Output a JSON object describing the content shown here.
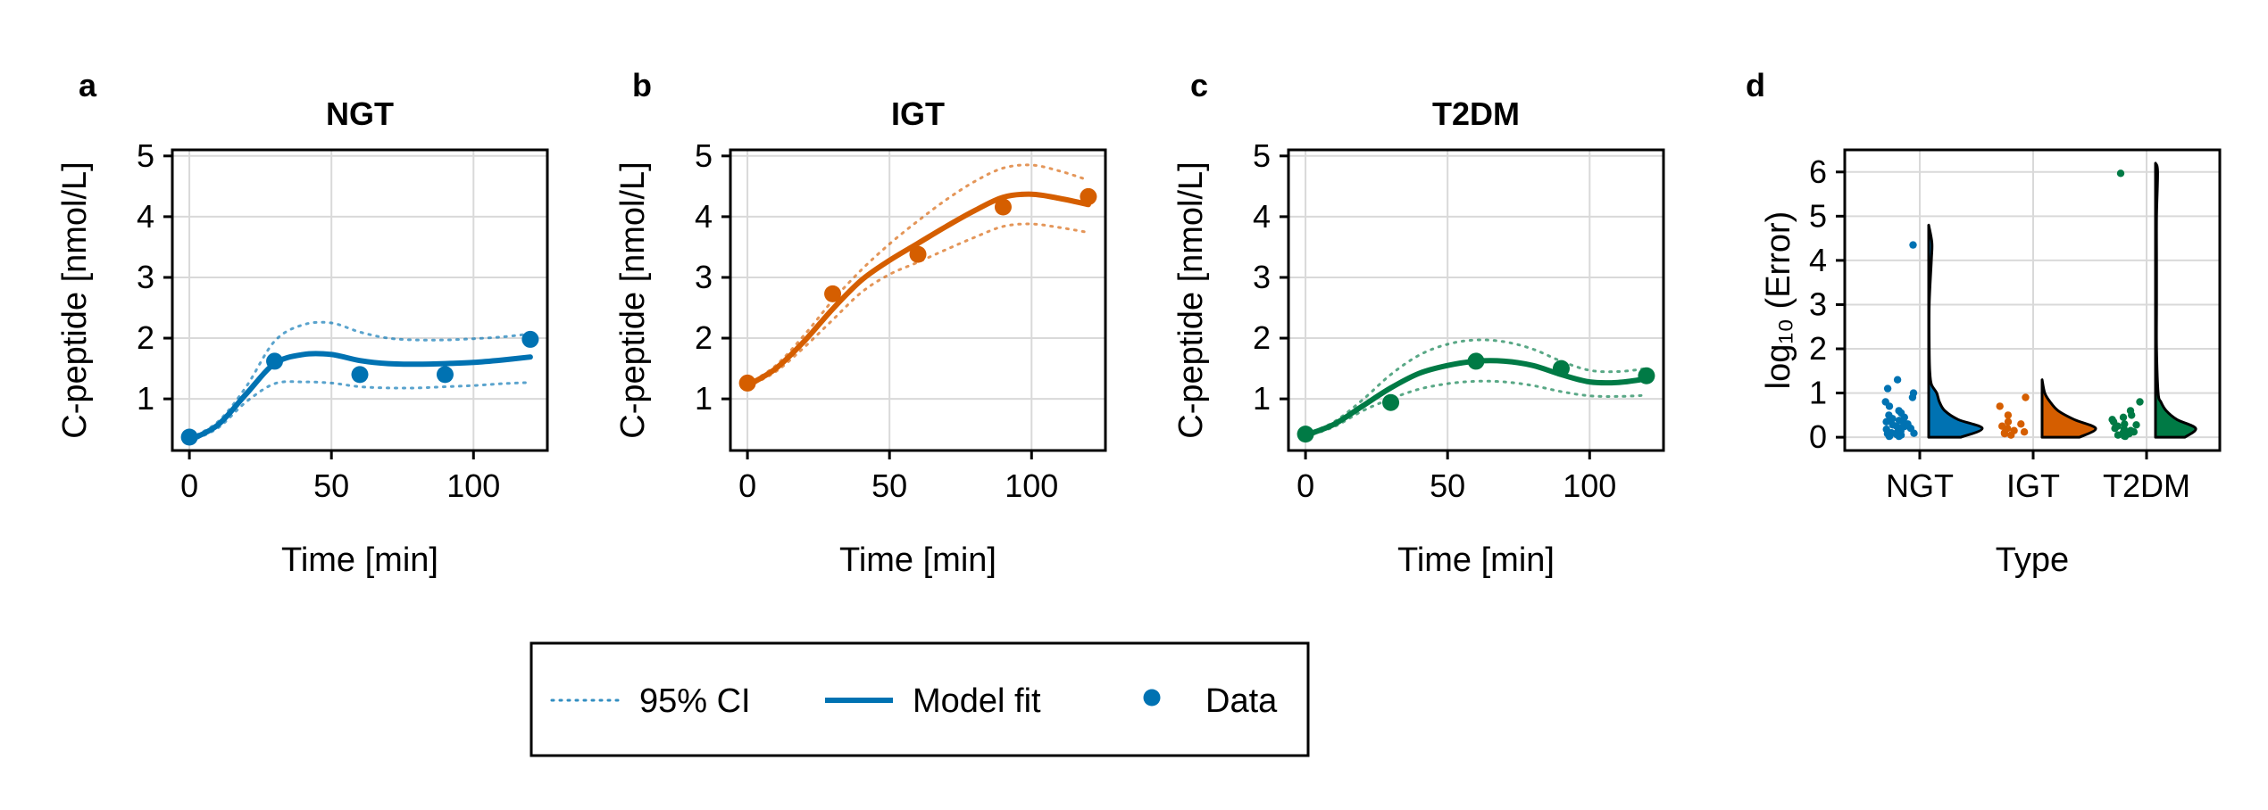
{
  "chart_data": [
    {
      "type": "line",
      "panel": "a",
      "title": "NGT",
      "xlabel": "Time [min]",
      "ylabel": "C-peptide [nmol/L]",
      "xlim": [
        -6,
        126
      ],
      "ylim": [
        0.15,
        5.1
      ],
      "xticks": [
        0,
        50,
        100
      ],
      "yticks": [
        1,
        2,
        3,
        4,
        5
      ],
      "color": "#0072b2",
      "data_points": {
        "x": [
          0,
          30,
          60,
          90,
          120
        ],
        "y": [
          0.37,
          1.62,
          1.4,
          1.4,
          1.98
        ]
      },
      "model_fit": {
        "x": [
          0,
          10,
          20,
          30,
          40,
          50,
          60,
          70,
          80,
          90,
          100,
          110,
          120
        ],
        "y": [
          0.32,
          0.57,
          1.08,
          1.58,
          1.73,
          1.73,
          1.63,
          1.58,
          1.57,
          1.58,
          1.6,
          1.64,
          1.69
        ]
      },
      "ci_upper": {
        "x": [
          0,
          10,
          20,
          30,
          40,
          50,
          60,
          70,
          80,
          90,
          100,
          110,
          120
        ],
        "y": [
          0.35,
          0.62,
          1.2,
          1.95,
          2.22,
          2.25,
          2.1,
          2.0,
          1.97,
          1.97,
          1.99,
          2.02,
          2.07
        ]
      },
      "ci_lower": {
        "x": [
          0,
          10,
          20,
          30,
          40,
          50,
          60,
          70,
          80,
          90,
          100,
          110,
          120
        ],
        "y": [
          0.3,
          0.52,
          0.95,
          1.25,
          1.28,
          1.26,
          1.2,
          1.18,
          1.18,
          1.2,
          1.22,
          1.25,
          1.27
        ]
      }
    },
    {
      "type": "line",
      "panel": "b",
      "title": "IGT",
      "xlabel": "Time [min]",
      "ylabel": "C-peptide [nmol/L]",
      "xlim": [
        -6,
        126
      ],
      "ylim": [
        0.15,
        5.1
      ],
      "xticks": [
        0,
        50,
        100
      ],
      "yticks": [
        1,
        2,
        3,
        4,
        5
      ],
      "color": "#d55e00",
      "data_points": {
        "x": [
          0,
          30,
          60,
          90,
          120
        ],
        "y": [
          1.26,
          2.73,
          3.38,
          4.16,
          4.33
        ]
      },
      "model_fit": {
        "x": [
          0,
          10,
          20,
          30,
          40,
          50,
          60,
          70,
          80,
          90,
          100,
          110,
          120
        ],
        "y": [
          1.22,
          1.5,
          1.95,
          2.48,
          2.95,
          3.28,
          3.56,
          3.84,
          4.1,
          4.32,
          4.37,
          4.3,
          4.2
        ]
      },
      "ci_upper": {
        "x": [
          0,
          10,
          20,
          30,
          40,
          50,
          60,
          70,
          80,
          90,
          100,
          110,
          120
        ],
        "y": [
          1.24,
          1.55,
          2.05,
          2.62,
          3.12,
          3.55,
          3.93,
          4.28,
          4.58,
          4.8,
          4.85,
          4.75,
          4.6
        ]
      },
      "ci_lower": {
        "x": [
          0,
          10,
          20,
          30,
          40,
          50,
          60,
          70,
          80,
          90,
          100,
          110,
          120
        ],
        "y": [
          1.2,
          1.45,
          1.85,
          2.3,
          2.75,
          3.05,
          3.25,
          3.46,
          3.66,
          3.84,
          3.88,
          3.82,
          3.74
        ]
      }
    },
    {
      "type": "line",
      "panel": "c",
      "title": "T2DM",
      "xlabel": "Time [min]",
      "ylabel": "C-peptide [nmol/L]",
      "xlim": [
        -6,
        126
      ],
      "ylim": [
        0.15,
        5.1
      ],
      "xticks": [
        0,
        50,
        100
      ],
      "yticks": [
        1,
        2,
        3,
        4,
        5
      ],
      "color": "#007a45",
      "data_points": {
        "x": [
          0,
          30,
          60,
          90,
          120
        ],
        "y": [
          0.42,
          0.94,
          1.62,
          1.5,
          1.38
        ]
      },
      "model_fit": {
        "x": [
          0,
          10,
          20,
          30,
          40,
          50,
          60,
          70,
          80,
          90,
          100,
          110,
          120
        ],
        "y": [
          0.4,
          0.58,
          0.88,
          1.18,
          1.42,
          1.55,
          1.62,
          1.62,
          1.55,
          1.4,
          1.28,
          1.27,
          1.33
        ]
      },
      "ci_upper": {
        "x": [
          0,
          10,
          20,
          30,
          40,
          50,
          60,
          70,
          80,
          90,
          100,
          110,
          120
        ],
        "y": [
          0.42,
          0.62,
          0.98,
          1.4,
          1.72,
          1.9,
          1.97,
          1.94,
          1.82,
          1.62,
          1.47,
          1.45,
          1.5
        ]
      },
      "ci_lower": {
        "x": [
          0,
          10,
          20,
          30,
          40,
          50,
          60,
          70,
          80,
          90,
          100,
          110,
          120
        ],
        "y": [
          0.38,
          0.54,
          0.8,
          1.0,
          1.16,
          1.25,
          1.29,
          1.28,
          1.22,
          1.12,
          1.05,
          1.04,
          1.06
        ]
      }
    },
    {
      "type": "violin",
      "panel": "d",
      "title": "",
      "xlabel": "Type",
      "ylabel": "log₁₀ (Error)",
      "ylim": [
        -0.3,
        6.5
      ],
      "yticks": [
        0,
        1,
        2,
        3,
        4,
        5,
        6
      ],
      "categories": [
        "NGT",
        "IGT",
        "T2DM"
      ],
      "colors": [
        "#0072b2",
        "#d55e00",
        "#007a45"
      ],
      "points": [
        [
          0.02,
          0.05,
          0.08,
          0.1,
          0.12,
          0.15,
          0.18,
          0.2,
          0.22,
          0.25,
          0.28,
          0.3,
          0.33,
          0.35,
          0.38,
          0.4,
          0.45,
          0.5,
          0.55,
          0.6,
          0.7,
          0.8,
          0.9,
          1.0,
          1.1,
          1.3,
          4.35,
          0.03,
          0.06,
          0.14,
          0.24,
          0.42,
          0.02,
          0.09
        ],
        [
          0.05,
          0.1,
          0.15,
          0.2,
          0.25,
          0.3,
          0.35,
          0.5,
          0.7,
          0.9,
          0.08,
          0.12
        ],
        [
          0.02,
          0.05,
          0.08,
          0.1,
          0.12,
          0.15,
          0.2,
          0.25,
          0.3,
          0.35,
          0.4,
          0.45,
          0.5,
          0.6,
          0.8,
          5.97,
          0.03,
          0.06,
          0.18,
          0.28
        ]
      ],
      "density": [
        {
          "y": [
            0.0,
            0.2,
            0.4,
            0.6,
            0.8,
            1.0,
            1.2,
            1.5,
            2.0,
            3.0,
            4.0,
            4.4,
            4.8
          ],
          "w": [
            0.6,
            1.0,
            0.55,
            0.3,
            0.2,
            0.15,
            0.05,
            0.02,
            0.01,
            0.01,
            0.05,
            0.06,
            0.0
          ]
        },
        {
          "y": [
            0.0,
            0.2,
            0.4,
            0.6,
            0.8,
            1.0,
            1.3
          ],
          "w": [
            0.7,
            1.0,
            0.6,
            0.3,
            0.15,
            0.05,
            0.0
          ]
        },
        {
          "y": [
            0.0,
            0.2,
            0.4,
            0.6,
            0.8,
            1.0,
            2.0,
            3.0,
            4.0,
            5.0,
            6.0,
            6.2
          ],
          "w": [
            0.55,
            0.75,
            0.4,
            0.2,
            0.1,
            0.05,
            0.02,
            0.02,
            0.02,
            0.02,
            0.04,
            0.0
          ]
        }
      ]
    }
  ],
  "legend": {
    "items": [
      {
        "label": "95% CI",
        "style": "dotted"
      },
      {
        "label": "Model fit",
        "style": "line"
      },
      {
        "label": "Data",
        "style": "marker"
      }
    ],
    "color": "#0072b2"
  }
}
